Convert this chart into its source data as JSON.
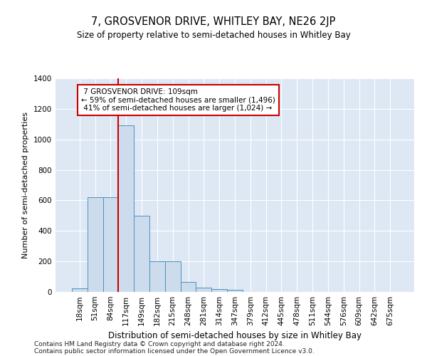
{
  "title": "7, GROSVENOR DRIVE, WHITLEY BAY, NE26 2JP",
  "subtitle": "Size of property relative to semi-detached houses in Whitley Bay",
  "xlabel": "Distribution of semi-detached houses by size in Whitley Bay",
  "ylabel": "Number of semi-detached properties",
  "footnote1": "Contains HM Land Registry data © Crown copyright and database right 2024.",
  "footnote2": "Contains public sector information licensed under the Open Government Licence v3.0.",
  "bin_labels": [
    "18sqm",
    "51sqm",
    "84sqm",
    "117sqm",
    "149sqm",
    "182sqm",
    "215sqm",
    "248sqm",
    "281sqm",
    "314sqm",
    "347sqm",
    "379sqm",
    "412sqm",
    "445sqm",
    "478sqm",
    "511sqm",
    "544sqm",
    "576sqm",
    "609sqm",
    "642sqm",
    "675sqm"
  ],
  "bar_values": [
    25,
    620,
    620,
    1090,
    500,
    200,
    200,
    65,
    30,
    20,
    15,
    0,
    0,
    0,
    0,
    0,
    0,
    0,
    0,
    0,
    0
  ],
  "property_label": "7 GROSVENOR DRIVE: 109sqm",
  "pct_smaller": 59,
  "pct_larger": 41,
  "count_smaller": 1496,
  "count_larger": 1024,
  "vline_x": 2.5,
  "bar_color": "#ccdcec",
  "bar_edge_color": "#4f8fbf",
  "vline_color": "#cc0000",
  "annotation_box_edge": "#cc0000",
  "background_color": "#dde8f4",
  "ylim": [
    0,
    1400
  ],
  "yticks": [
    0,
    200,
    400,
    600,
    800,
    1000,
    1200,
    1400
  ]
}
